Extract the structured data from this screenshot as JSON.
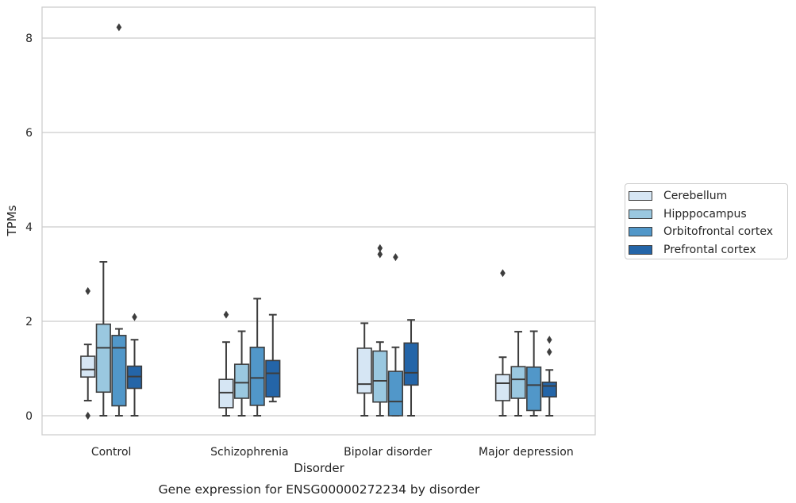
{
  "chart_data": {
    "type": "box",
    "title": "Gene expression for ENSG00000272234 by disorder",
    "xlabel": "Disorder",
    "ylabel": "TPMs",
    "ylim": [
      -0.4,
      8.65
    ],
    "yticks": [
      0,
      2,
      4,
      6,
      8
    ],
    "grid": "horizontal",
    "legend_position": "right",
    "categories": [
      "Control",
      "Schizophrenia",
      "Bipolar disorder",
      "Major depression"
    ],
    "series": [
      {
        "name": "Cerebellum",
        "color": "#d6e6f4",
        "boxes": [
          {
            "whislo": 0.32,
            "q1": 0.82,
            "med": 0.98,
            "q3": 1.26,
            "whishi": 1.51,
            "fliers": [
              0.0,
              2.64
            ]
          },
          {
            "whislo": 0.0,
            "q1": 0.17,
            "med": 0.49,
            "q3": 0.77,
            "whishi": 1.56,
            "fliers": [
              2.14
            ]
          },
          {
            "whislo": 0.0,
            "q1": 0.48,
            "med": 0.67,
            "q3": 1.43,
            "whishi": 1.96,
            "fliers": []
          },
          {
            "whislo": 0.0,
            "q1": 0.32,
            "med": 0.69,
            "q3": 0.87,
            "whishi": 1.24,
            "fliers": [
              3.02
            ]
          }
        ]
      },
      {
        "name": "Hipppocampus",
        "color": "#9ac8e0",
        "boxes": [
          {
            "whislo": 0.0,
            "q1": 0.5,
            "med": 1.44,
            "q3": 1.94,
            "whishi": 3.26,
            "fliers": []
          },
          {
            "whislo": 0.0,
            "q1": 0.37,
            "med": 0.7,
            "q3": 1.09,
            "whishi": 1.79,
            "fliers": []
          },
          {
            "whislo": 0.0,
            "q1": 0.29,
            "med": 0.74,
            "q3": 1.37,
            "whishi": 1.56,
            "fliers": [
              3.42,
              3.55
            ]
          },
          {
            "whislo": 0.0,
            "q1": 0.37,
            "med": 0.77,
            "q3": 1.04,
            "whishi": 1.78,
            "fliers": []
          }
        ]
      },
      {
        "name": "Orbitofrontal cortex",
        "color": "#5197c9",
        "boxes": [
          {
            "whislo": 0.0,
            "q1": 0.21,
            "med": 1.44,
            "q3": 1.7,
            "whishi": 1.84,
            "fliers": [
              8.23
            ]
          },
          {
            "whislo": 0.0,
            "q1": 0.22,
            "med": 0.8,
            "q3": 1.45,
            "whishi": 2.48,
            "fliers": []
          },
          {
            "whislo": 0.0,
            "q1": 0.0,
            "med": 0.3,
            "q3": 0.94,
            "whishi": 1.45,
            "fliers": [
              3.36
            ]
          },
          {
            "whislo": 0.0,
            "q1": 0.11,
            "med": 0.65,
            "q3": 1.03,
            "whishi": 1.79,
            "fliers": []
          }
        ]
      },
      {
        "name": "Prefrontal cortex",
        "color": "#2465a8",
        "boxes": [
          {
            "whislo": 0.0,
            "q1": 0.58,
            "med": 0.83,
            "q3": 1.05,
            "whishi": 1.61,
            "fliers": [
              2.09
            ]
          },
          {
            "whislo": 0.3,
            "q1": 0.4,
            "med": 0.9,
            "q3": 1.17,
            "whishi": 2.14,
            "fliers": []
          },
          {
            "whislo": 0.0,
            "q1": 0.65,
            "med": 0.91,
            "q3": 1.54,
            "whishi": 2.03,
            "fliers": []
          },
          {
            "whislo": 0.0,
            "q1": 0.4,
            "med": 0.63,
            "q3": 0.71,
            "whishi": 0.97,
            "fliers": [
              1.35,
              1.61
            ]
          }
        ]
      }
    ]
  }
}
